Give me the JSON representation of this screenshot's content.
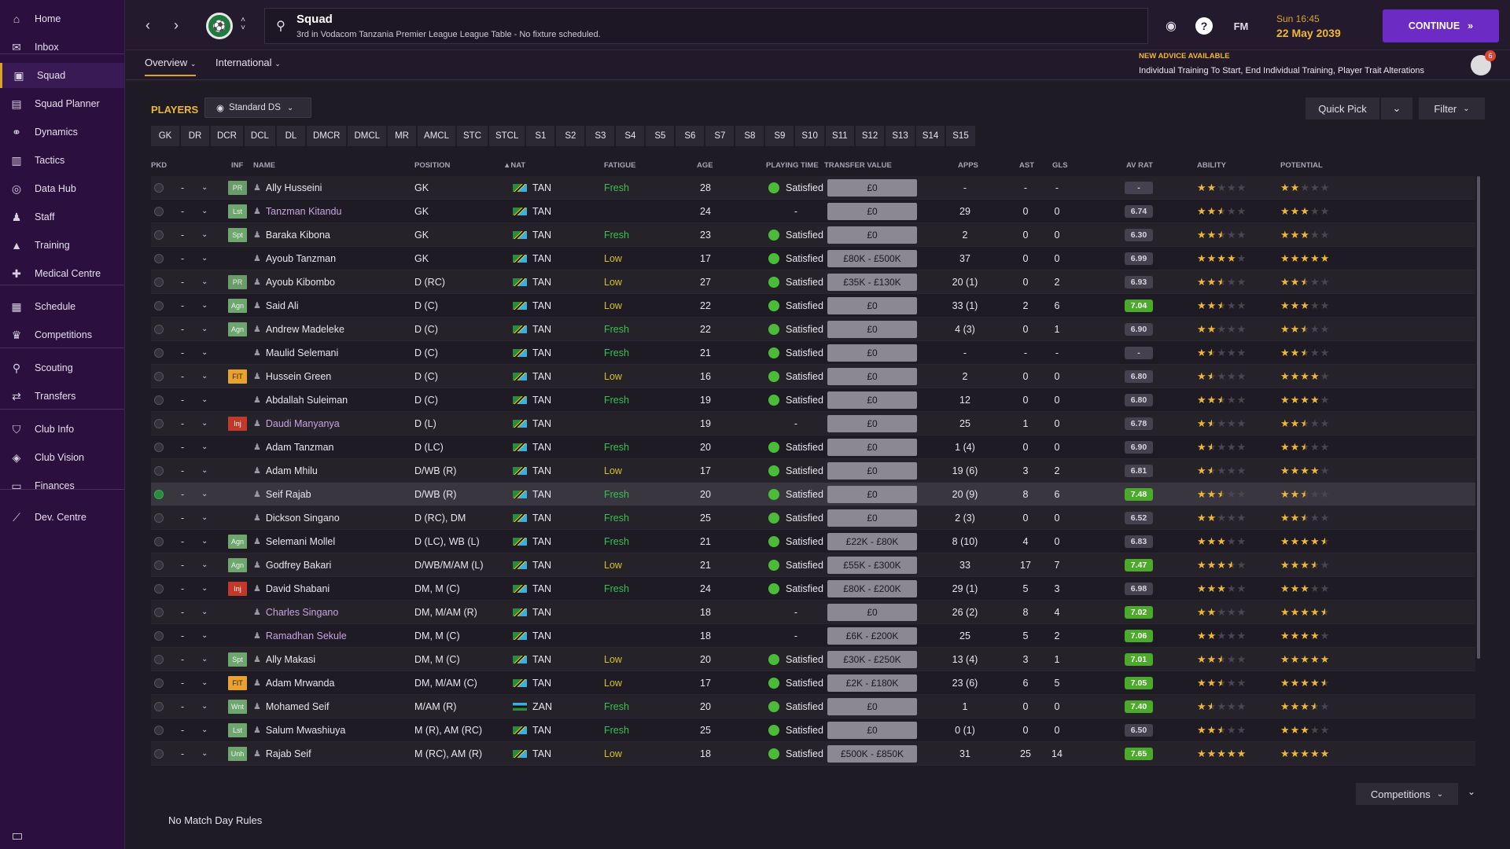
{
  "sidebar": {
    "items": [
      {
        "label": "Home",
        "icon": "home-icon"
      },
      {
        "label": "Inbox",
        "icon": "inbox-icon"
      },
      {
        "label": "Squad",
        "icon": "squad-icon"
      },
      {
        "label": "Squad Planner",
        "icon": "planner-icon"
      },
      {
        "label": "Dynamics",
        "icon": "dynamics-icon"
      },
      {
        "label": "Tactics",
        "icon": "tactics-icon"
      },
      {
        "label": "Data Hub",
        "icon": "data-hub-icon"
      },
      {
        "label": "Staff",
        "icon": "staff-icon"
      },
      {
        "label": "Training",
        "icon": "training-icon"
      },
      {
        "label": "Medical Centre",
        "icon": "medical-icon"
      },
      {
        "label": "Schedule",
        "icon": "calendar-icon"
      },
      {
        "label": "Competitions",
        "icon": "trophy-icon"
      },
      {
        "label": "Scouting",
        "icon": "scouting-icon"
      },
      {
        "label": "Transfers",
        "icon": "transfers-icon"
      },
      {
        "label": "Club Info",
        "icon": "shield-icon"
      },
      {
        "label": "Club Vision",
        "icon": "vision-icon"
      },
      {
        "label": "Finances",
        "icon": "finances-icon"
      },
      {
        "label": "Dev. Centre",
        "icon": "dev-centre-icon"
      }
    ]
  },
  "header": {
    "title": "Squad",
    "subtitle": "3rd in Vodacom Tanzania Premier League League Table - No fixture scheduled.",
    "brand": "FM",
    "time": "Sun 16:45",
    "date": "22 May 2039",
    "continue_label": "CONTINUE"
  },
  "subnav": {
    "tabs": [
      "Overview",
      "International"
    ],
    "advice_title": "NEW ADVICE AVAILABLE",
    "advice_text": "Individual Training To Start, End Individual Training, Player Trait Alterations",
    "advice_count": "6"
  },
  "players": {
    "title": "PLAYERS",
    "view": "Standard DS",
    "quick_pick": "Quick Pick",
    "filter": "Filter",
    "position_filters": [
      "GK",
      "DR",
      "DCR",
      "DCL",
      "DL",
      "DMCR",
      "DMCL",
      "MR",
      "AMCL",
      "STC",
      "STCL",
      "S1",
      "S2",
      "S3",
      "S4",
      "S5",
      "S6",
      "S7",
      "S8",
      "S9",
      "S10",
      "S11",
      "S12",
      "S13",
      "S14",
      "S15"
    ],
    "columns": [
      "PKD",
      "INF",
      "NAME",
      "POSITION",
      "NAT",
      "FATIGUE",
      "AGE",
      "PLAYING TIME",
      "TRANSFER VALUE",
      "APPS",
      "AST",
      "GLS",
      "AV RAT",
      "ABILITY",
      "POTENTIAL"
    ],
    "rows": [
      {
        "inf": "PR",
        "name": "Ally Husseini",
        "position": "GK",
        "nat": "TAN",
        "fatigue": "Fresh",
        "age": "28",
        "pt": "Satisfied",
        "tv": "£0",
        "apps": "-",
        "ast": "-",
        "gls": "-",
        "avr": "-",
        "ability": 2,
        "potential": 2
      },
      {
        "inf": "Lst",
        "name": "Tanzman Kitandu",
        "position": "GK",
        "nat": "TAN",
        "fatigue": "",
        "age": "24",
        "pt": "-",
        "tv": "£0",
        "apps": "29",
        "ast": "0",
        "gls": "0",
        "avr": "6.74",
        "ability": 2.5,
        "potential": 3
      },
      {
        "inf": "Spt",
        "name": "Baraka Kibona",
        "position": "GK",
        "nat": "TAN",
        "fatigue": "Fresh",
        "age": "23",
        "pt": "Satisfied",
        "tv": "£0",
        "apps": "2",
        "ast": "0",
        "gls": "0",
        "avr": "6.30",
        "ability": 2.5,
        "potential": 3
      },
      {
        "inf": "",
        "name": "Ayoub Tanzman",
        "position": "GK",
        "nat": "TAN",
        "fatigue": "Low",
        "age": "17",
        "pt": "Satisfied",
        "tv": "£80K - £500K",
        "apps": "37",
        "ast": "0",
        "gls": "0",
        "avr": "6.99",
        "ability": 4,
        "potential": 5
      },
      {
        "inf": "PR",
        "name": "Ayoub Kibombo",
        "position": "D (RC)",
        "nat": "TAN",
        "fatigue": "Low",
        "age": "27",
        "pt": "Satisfied",
        "tv": "£35K - £130K",
        "apps": "20 (1)",
        "ast": "0",
        "gls": "2",
        "avr": "6.93",
        "ability": 2.5,
        "potential": 2.5
      },
      {
        "inf": "Agn",
        "name": "Said Ali",
        "position": "D (C)",
        "nat": "TAN",
        "fatigue": "Low",
        "age": "22",
        "pt": "Satisfied",
        "tv": "£0",
        "apps": "33 (1)",
        "ast": "2",
        "gls": "6",
        "avr": "7.04",
        "ability": 2.5,
        "potential": 3
      },
      {
        "inf": "Agn",
        "name": "Andrew Madeleke",
        "position": "D (C)",
        "nat": "TAN",
        "fatigue": "Fresh",
        "age": "22",
        "pt": "Satisfied",
        "tv": "£0",
        "apps": "4 (3)",
        "ast": "0",
        "gls": "1",
        "avr": "6.90",
        "ability": 2,
        "potential": 2.5
      },
      {
        "inf": "",
        "name": "Maulid Selemani",
        "position": "D (C)",
        "nat": "TAN",
        "fatigue": "Fresh",
        "age": "21",
        "pt": "Satisfied",
        "tv": "£0",
        "apps": "-",
        "ast": "-",
        "gls": "-",
        "avr": "-",
        "ability": 1.5,
        "potential": 2.5
      },
      {
        "inf": "FIT",
        "name": "Hussein Green",
        "position": "D (C)",
        "nat": "TAN",
        "fatigue": "Low",
        "age": "16",
        "pt": "Satisfied",
        "tv": "£0",
        "apps": "2",
        "ast": "0",
        "gls": "0",
        "avr": "6.80",
        "ability": 1.5,
        "potential": 4
      },
      {
        "inf": "",
        "name": "Abdallah Suleiman",
        "position": "D (C)",
        "nat": "TAN",
        "fatigue": "Fresh",
        "age": "19",
        "pt": "Satisfied",
        "tv": "£0",
        "apps": "12",
        "ast": "0",
        "gls": "0",
        "avr": "6.80",
        "ability": 2.5,
        "potential": 4
      },
      {
        "inf": "Inj",
        "name": "Daudi Manyanya",
        "position": "D (L)",
        "nat": "TAN",
        "fatigue": "",
        "age": "19",
        "pt": "-",
        "tv": "£0",
        "apps": "25",
        "ast": "1",
        "gls": "0",
        "avr": "6.78",
        "ability": 1.5,
        "potential": 2.5
      },
      {
        "inf": "",
        "name": "Adam Tanzman",
        "position": "D (LC)",
        "nat": "TAN",
        "fatigue": "Fresh",
        "age": "20",
        "pt": "Satisfied",
        "tv": "£0",
        "apps": "1 (4)",
        "ast": "0",
        "gls": "0",
        "avr": "6.90",
        "ability": 1.5,
        "potential": 2.5
      },
      {
        "inf": "",
        "name": "Adam Mhilu",
        "position": "D/WB (R)",
        "nat": "TAN",
        "fatigue": "Low",
        "age": "17",
        "pt": "Satisfied",
        "tv": "£0",
        "apps": "19 (6)",
        "ast": "3",
        "gls": "2",
        "avr": "6.81",
        "ability": 1.5,
        "potential": 4
      },
      {
        "inf": "",
        "name": "Seif Rajab",
        "position": "D/WB (R)",
        "nat": "TAN",
        "fatigue": "Fresh",
        "age": "20",
        "pt": "Satisfied",
        "tv": "£0",
        "apps": "20 (9)",
        "ast": "8",
        "gls": "6",
        "avr": "7.48",
        "ability": 2.5,
        "potential": 2.5
      },
      {
        "inf": "",
        "name": "Dickson Singano",
        "position": "D (RC), DM",
        "nat": "TAN",
        "fatigue": "Fresh",
        "age": "25",
        "pt": "Satisfied",
        "tv": "£0",
        "apps": "2 (3)",
        "ast": "0",
        "gls": "0",
        "avr": "6.52",
        "ability": 2,
        "potential": 2.5
      },
      {
        "inf": "Agn",
        "name": "Selemani Mollel",
        "position": "D (LC), WB (L)",
        "nat": "TAN",
        "fatigue": "Fresh",
        "age": "21",
        "pt": "Satisfied",
        "tv": "£22K - £80K",
        "apps": "8 (10)",
        "ast": "4",
        "gls": "0",
        "avr": "6.83",
        "ability": 3,
        "potential": 4.5
      },
      {
        "inf": "Agn",
        "name": "Godfrey Bakari",
        "position": "D/WB/M/AM (L)",
        "nat": "TAN",
        "fatigue": "Low",
        "age": "21",
        "pt": "Satisfied",
        "tv": "£55K - £300K",
        "apps": "33",
        "ast": "17",
        "gls": "7",
        "avr": "7.47",
        "ability": 3.5,
        "potential": 3.5
      },
      {
        "inf": "Inj",
        "name": "David Shabani",
        "position": "DM, M (C)",
        "nat": "TAN",
        "fatigue": "Fresh",
        "age": "24",
        "pt": "Satisfied",
        "tv": "£80K - £200K",
        "apps": "29 (1)",
        "ast": "5",
        "gls": "3",
        "avr": "6.98",
        "ability": 3,
        "potential": 3
      },
      {
        "inf": "",
        "name": "Charles Singano",
        "position": "DM, M/AM (R)",
        "nat": "TAN",
        "fatigue": "",
        "age": "18",
        "pt": "-",
        "tv": "£0",
        "apps": "26 (2)",
        "ast": "8",
        "gls": "4",
        "avr": "7.02",
        "ability": 2,
        "potential": 4.5
      },
      {
        "inf": "",
        "name": "Ramadhan Sekule",
        "position": "DM, M (C)",
        "nat": "TAN",
        "fatigue": "",
        "age": "18",
        "pt": "-",
        "tv": "£6K - £200K",
        "apps": "25",
        "ast": "5",
        "gls": "2",
        "avr": "7.06",
        "ability": 2,
        "potential": 4
      },
      {
        "inf": "Spt",
        "name": "Ally Makasi",
        "position": "DM, M (C)",
        "nat": "TAN",
        "fatigue": "Low",
        "age": "20",
        "pt": "Satisfied",
        "tv": "£30K - £250K",
        "apps": "13 (4)",
        "ast": "3",
        "gls": "1",
        "avr": "7.01",
        "ability": 2.5,
        "potential": 5
      },
      {
        "inf": "FIT",
        "name": "Adam Mrwanda",
        "position": "DM, M/AM (C)",
        "nat": "TAN",
        "fatigue": "Low",
        "age": "17",
        "pt": "Satisfied",
        "tv": "£2K - £180K",
        "apps": "23 (6)",
        "ast": "6",
        "gls": "5",
        "avr": "7.05",
        "ability": 2.5,
        "potential": 4.5
      },
      {
        "inf": "Wnt",
        "name": "Mohamed Seif",
        "position": "M/AM (R)",
        "nat": "ZAN",
        "fatigue": "Fresh",
        "age": "20",
        "pt": "Satisfied",
        "tv": "£0",
        "apps": "1",
        "ast": "0",
        "gls": "0",
        "avr": "7.40",
        "ability": 1.5,
        "potential": 3.5
      },
      {
        "inf": "Lst",
        "name": "Salum Mwashiuya",
        "position": "M (R), AM (RC)",
        "nat": "TAN",
        "fatigue": "Fresh",
        "age": "25",
        "pt": "Satisfied",
        "tv": "£0",
        "apps": "0 (1)",
        "ast": "0",
        "gls": "0",
        "avr": "6.50",
        "ability": 2.5,
        "potential": 3
      },
      {
        "inf": "Unh",
        "name": "Rajab Seif",
        "position": "M (RC), AM (R)",
        "nat": "TAN",
        "fatigue": "Low",
        "age": "18",
        "pt": "Satisfied",
        "tv": "£500K - £850K",
        "apps": "31",
        "ast": "25",
        "gls": "14",
        "avr": "7.65",
        "ability": 5,
        "potential": 5
      }
    ],
    "competitions_label": "Competitions",
    "match_day_rules": "No Match Day Rules"
  },
  "colors": {
    "accent": "#f0b832",
    "continue": "#6b2bc4",
    "sidebar": "#2a0f3f",
    "fresh": "#37c24f",
    "low": "#d7c21f"
  }
}
